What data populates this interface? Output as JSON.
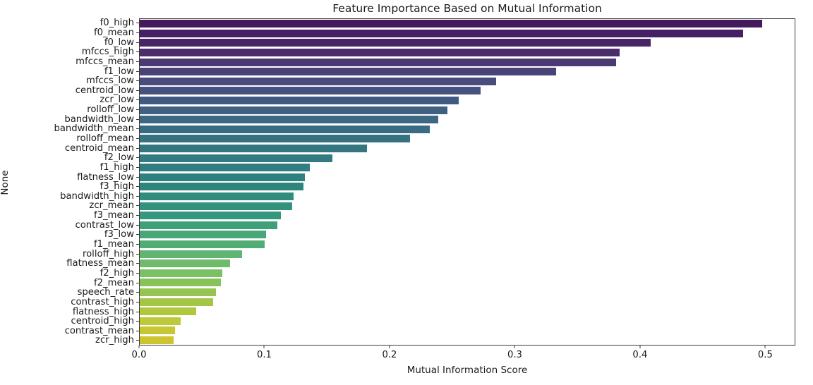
{
  "figure": {
    "background": "#ffffff",
    "spine_color": "#3a3a3a",
    "text_color": "#1b1b1b"
  },
  "chart_data": {
    "type": "bar",
    "orientation": "horizontal",
    "title": "Feature Importance Based on Mutual Information",
    "xlabel": "Mutual Information Score",
    "ylabel": "None",
    "legend": "none",
    "grid": false,
    "colormap": "viridis",
    "xlim": [
      0,
      0.524
    ],
    "xticks": [
      0,
      0.1,
      0.2,
      0.3,
      0.4,
      0.5
    ],
    "xtick_labels": [
      "0.0",
      "0.1",
      "0.2",
      "0.3",
      "0.4",
      "0.5"
    ],
    "categories": [
      "f0_high",
      "f0_mean",
      "f0_low",
      "mfccs_high",
      "mfccs_mean",
      "f1_low",
      "mfccs_low",
      "centroid_low",
      "zcr_low",
      "rolloff_low",
      "bandwidth_low",
      "bandwidth_mean",
      "rolloff_mean",
      "centroid_mean",
      "f2_low",
      "f1_high",
      "flatness_low",
      "f3_high",
      "bandwidth_high",
      "zcr_mean",
      "f3_mean",
      "contrast_low",
      "f3_low",
      "f1_mean",
      "rolloff_high",
      "flatness_mean",
      "f2_high",
      "f2_mean",
      "speech_rate",
      "contrast_high",
      "flatness_high",
      "centroid_high",
      "contrast_mean",
      "zcr_high"
    ],
    "values": [
      0.498,
      0.483,
      0.409,
      0.384,
      0.381,
      0.333,
      0.285,
      0.273,
      0.255,
      0.246,
      0.239,
      0.232,
      0.216,
      0.182,
      0.154,
      0.136,
      0.132,
      0.131,
      0.123,
      0.122,
      0.113,
      0.11,
      0.101,
      0.1,
      0.082,
      0.072,
      0.066,
      0.065,
      0.061,
      0.059,
      0.045,
      0.033,
      0.028,
      0.027
    ],
    "bar_colors": [
      "#441a5c",
      "#452064",
      "#472667",
      "#492e6b",
      "#4a3972",
      "#4a4378",
      "#494c7d",
      "#465380",
      "#425a81",
      "#406082",
      "#3d6782",
      "#396c82",
      "#377282",
      "#347781",
      "#327b81",
      "#307e80",
      "#2f817f",
      "#2e857e",
      "#308c7d",
      "#32927d",
      "#35987c",
      "#3e9f79",
      "#49a777",
      "#52ad74",
      "#61b570",
      "#6fbb6b",
      "#7ac064",
      "#88c25a",
      "#96c450",
      "#a4c645",
      "#b0c83d",
      "#bcc938",
      "#c6c733",
      "#cdc42f"
    ]
  }
}
